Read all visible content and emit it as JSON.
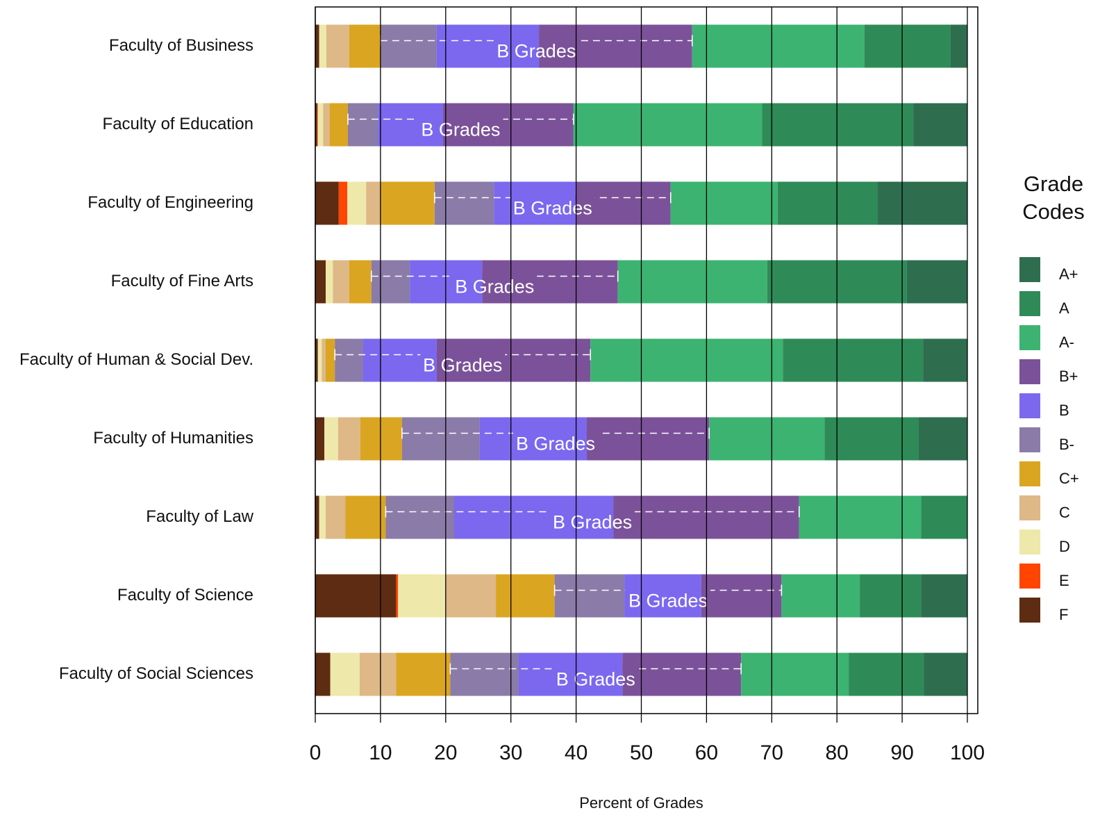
{
  "chart_data": {
    "type": "stacked-barh",
    "x_label": "Percent of Grades",
    "annotation": "B Grades",
    "legend_title": [
      "Grade",
      "Codes"
    ],
    "categories": [
      "Faculty of Business",
      "Faculty of Education",
      "Faculty of Engineering",
      "Faculty of Fine Arts",
      "Faculty of Human & Social Dev.",
      "Faculty of Humanities",
      "Faculty of Law",
      "Faculty of Science",
      "Faculty of Social Sciences"
    ],
    "series": [
      {
        "name": "F",
        "color": "#5e2c12",
        "values": [
          0.6,
          0.3,
          3.6,
          1.6,
          0.4,
          1.4,
          0.6,
          12.4,
          2.3
        ]
      },
      {
        "name": "E",
        "color": "#ff4500",
        "values": [
          0,
          0.1,
          1.3,
          0,
          0,
          0,
          0,
          0.3,
          0
        ]
      },
      {
        "name": "D",
        "color": "#eee8aa",
        "values": [
          1.1,
          0.8,
          2.9,
          1.1,
          0.6,
          2.1,
          1.0,
          7.3,
          4.5
        ]
      },
      {
        "name": "C",
        "color": "#deb887",
        "values": [
          3.5,
          1.0,
          2.2,
          2.5,
          0.6,
          3.4,
          3.0,
          7.7,
          5.6
        ]
      },
      {
        "name": "C+",
        "color": "#daa520",
        "values": [
          4.8,
          2.8,
          8.3,
          3.4,
          1.4,
          6.4,
          6.2,
          9.0,
          8.3
        ]
      },
      {
        "name": "B-",
        "color": "#8a7ba8",
        "values": [
          8.6,
          4.6,
          9.1,
          5.9,
          4.3,
          11.9,
          10.5,
          10.7,
          10.5
        ]
      },
      {
        "name": "B",
        "color": "#7b68ee",
        "values": [
          15.7,
          10.0,
          12.5,
          11.1,
          11.3,
          16.4,
          24.4,
          11.8,
          15.9
        ]
      },
      {
        "name": "B+",
        "color": "#7b5299",
        "values": [
          23.5,
          20.0,
          14.6,
          20.8,
          23.6,
          18.8,
          28.5,
          12.3,
          18.2
        ]
      },
      {
        "name": "A-",
        "color": "#3cb371",
        "values": [
          26.4,
          28.9,
          16.4,
          22.9,
          29.5,
          17.7,
          18.7,
          12.0,
          16.5
        ]
      },
      {
        "name": "A",
        "color": "#2e8b57",
        "values": [
          13.2,
          23.2,
          15.3,
          21.4,
          21.5,
          14.4,
          7.1,
          9.4,
          11.5
        ]
      },
      {
        "name": "A+",
        "color": "#2e6e4f",
        "values": [
          2.6,
          8.3,
          13.8,
          9.3,
          6.8,
          7.5,
          0,
          7.1,
          6.7
        ]
      }
    ],
    "bracket_series": [
      "B-",
      "B+"
    ],
    "xlim": [
      0,
      100
    ],
    "xticks": [
      0,
      10,
      20,
      30,
      40,
      50,
      60,
      70,
      80,
      90,
      100
    ],
    "grid": true
  }
}
